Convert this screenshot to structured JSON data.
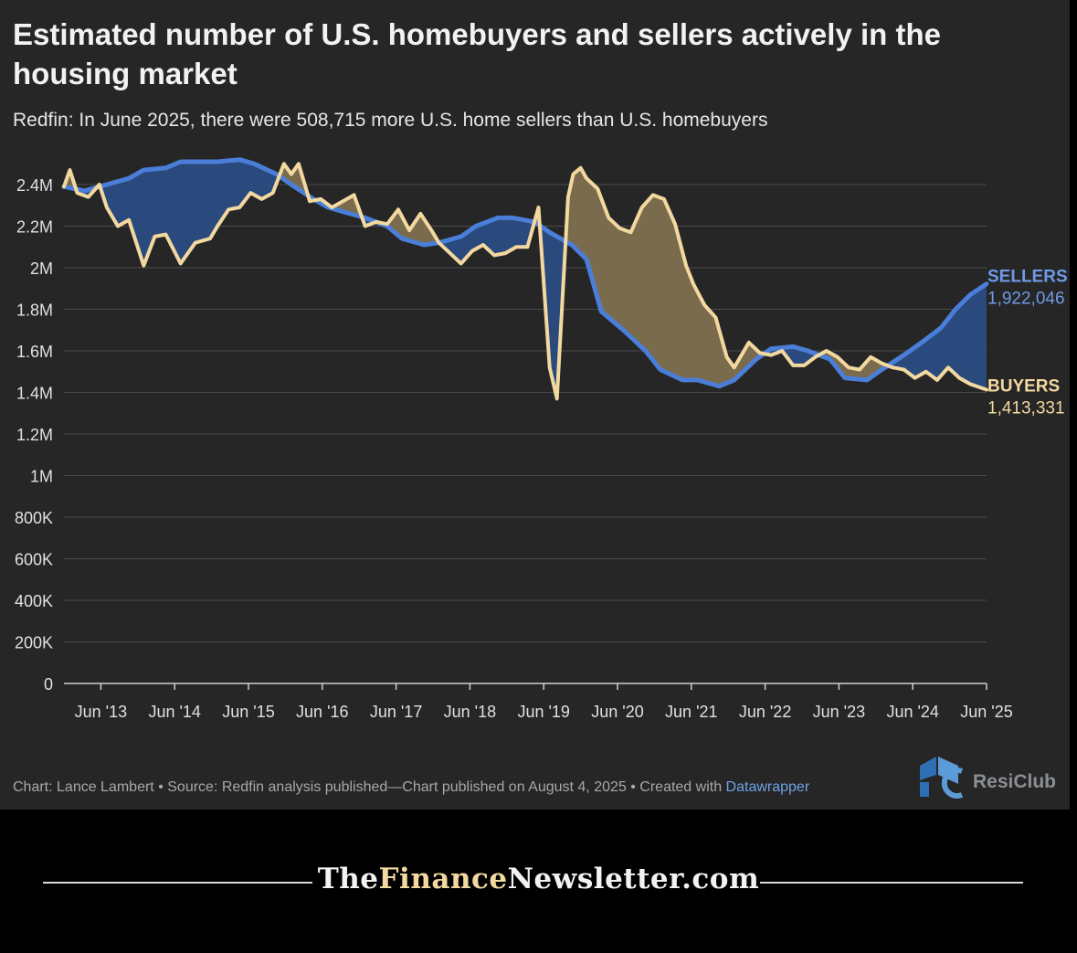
{
  "header": {
    "title": "Estimated number of U.S. homebuyers and sellers actively in the housing market",
    "subtitle": "Redfin: In June 2025, there were 508,715 more U.S. home sellers than U.S. homebuyers"
  },
  "footer": {
    "credit": "Chart: Lance Lambert • Source: Redfin analysis published—Chart published on August 4, 2025 • Created with ",
    "tool": "Datawrapper"
  },
  "logo": {
    "text": "ResiClub",
    "icon": "resiclub-logo-icon"
  },
  "brand": {
    "prefix": "The",
    "accent": "Finance",
    "suffix": "Newsletter.com"
  },
  "colors": {
    "background": "#262626",
    "sellers": "#4a7ed8",
    "sellers_fill": "#2a4b82",
    "buyers": "#f3d9a0",
    "buyers_fill": "#7f6f4f",
    "grid": "#4a4a4a",
    "text": "#e0e0e0"
  },
  "chart_data": {
    "type": "area",
    "title": "Estimated number of U.S. homebuyers and sellers actively in the housing market",
    "subtitle": "Redfin: In June 2025, there were 508,715 more U.S. home sellers than U.S. homebuyers",
    "ylim": [
      0,
      2400000
    ],
    "yticks": [
      0,
      200000,
      400000,
      600000,
      800000,
      1000000,
      1200000,
      1400000,
      1600000,
      1800000,
      2000000,
      2200000,
      2400000
    ],
    "ytick_labels": [
      "0",
      "200K",
      "400K",
      "600K",
      "800K",
      "1M",
      "1.2M",
      "1.4M",
      "1.6M",
      "1.8M",
      "2M",
      "2.2M",
      "2.4M"
    ],
    "xlim": [
      2012.92,
      2025.42
    ],
    "xticks": [
      2013.42,
      2014.42,
      2015.42,
      2016.42,
      2017.42,
      2018.42,
      2019.42,
      2020.42,
      2021.42,
      2022.42,
      2023.42,
      2024.42,
      2025.42
    ],
    "xtick_labels": [
      "Jun '13",
      "Jun '14",
      "Jun '15",
      "Jun '16",
      "Jun '17",
      "Jun '18",
      "Jun '19",
      "Jun '20",
      "Jun '21",
      "Jun '22",
      "Jun '23",
      "Jun '24",
      "Jun '25"
    ],
    "grid": true,
    "series": [
      {
        "name": "SELLERS",
        "end_label": "1,922,046",
        "x": [
          2012.92,
          2013.2,
          2013.5,
          2013.8,
          2014.0,
          2014.3,
          2014.5,
          2014.8,
          2015.0,
          2015.3,
          2015.5,
          2015.8,
          2016.0,
          2016.3,
          2016.5,
          2016.8,
          2017.0,
          2017.3,
          2017.5,
          2017.8,
          2018.0,
          2018.3,
          2018.5,
          2018.8,
          2019.0,
          2019.3,
          2019.5,
          2019.8,
          2020.0,
          2020.2,
          2020.5,
          2020.8,
          2021.0,
          2021.3,
          2021.5,
          2021.8,
          2022.0,
          2022.3,
          2022.5,
          2022.8,
          2023.0,
          2023.3,
          2023.5,
          2023.8,
          2024.0,
          2024.3,
          2024.5,
          2024.8,
          2025.0,
          2025.2,
          2025.42
        ],
        "y": [
          2390000,
          2370000,
          2400000,
          2430000,
          2470000,
          2480000,
          2510000,
          2510000,
          2510000,
          2520000,
          2500000,
          2450000,
          2400000,
          2330000,
          2290000,
          2260000,
          2240000,
          2200000,
          2140000,
          2110000,
          2120000,
          2150000,
          2200000,
          2240000,
          2240000,
          2220000,
          2170000,
          2110000,
          2040000,
          1790000,
          1700000,
          1600000,
          1510000,
          1460000,
          1460000,
          1430000,
          1460000,
          1560000,
          1610000,
          1620000,
          1600000,
          1560000,
          1470000,
          1460000,
          1510000,
          1580000,
          1630000,
          1710000,
          1800000,
          1870000,
          1922046
        ],
        "color": "#4a7ed8"
      },
      {
        "name": "BUYERS",
        "end_label": "1,413,331",
        "x": [
          2012.92,
          2013.0,
          2013.1,
          2013.25,
          2013.4,
          2013.5,
          2013.65,
          2013.8,
          2014.0,
          2014.15,
          2014.3,
          2014.5,
          2014.7,
          2014.9,
          2015.0,
          2015.15,
          2015.3,
          2015.45,
          2015.6,
          2015.75,
          2015.9,
          2016.0,
          2016.1,
          2016.25,
          2016.4,
          2016.55,
          2016.7,
          2016.85,
          2017.0,
          2017.15,
          2017.3,
          2017.45,
          2017.6,
          2017.75,
          2017.9,
          2018.0,
          2018.15,
          2018.3,
          2018.45,
          2018.6,
          2018.75,
          2018.9,
          2019.05,
          2019.2,
          2019.35,
          2019.5,
          2019.6,
          2019.75,
          2019.82,
          2019.92,
          2020.0,
          2020.15,
          2020.3,
          2020.45,
          2020.6,
          2020.75,
          2020.9,
          2021.05,
          2021.2,
          2021.35,
          2021.45,
          2021.6,
          2021.75,
          2021.9,
          2022.0,
          2022.1,
          2022.2,
          2022.35,
          2022.5,
          2022.65,
          2022.8,
          2022.95,
          2023.1,
          2023.25,
          2023.4,
          2023.55,
          2023.7,
          2023.85,
          2024.0,
          2024.15,
          2024.3,
          2024.45,
          2024.6,
          2024.75,
          2024.9,
          2025.05,
          2025.2,
          2025.42
        ],
        "y": [
          2390000,
          2470000,
          2360000,
          2340000,
          2400000,
          2290000,
          2200000,
          2230000,
          2010000,
          2150000,
          2160000,
          2020000,
          2120000,
          2140000,
          2200000,
          2280000,
          2290000,
          2360000,
          2330000,
          2360000,
          2500000,
          2450000,
          2500000,
          2320000,
          2330000,
          2290000,
          2320000,
          2350000,
          2200000,
          2220000,
          2210000,
          2280000,
          2180000,
          2260000,
          2180000,
          2120000,
          2070000,
          2020000,
          2080000,
          2110000,
          2060000,
          2070000,
          2100000,
          2100000,
          2290000,
          1520000,
          1370000,
          2340000,
          2450000,
          2480000,
          2430000,
          2380000,
          2240000,
          2190000,
          2170000,
          2290000,
          2350000,
          2330000,
          2210000,
          2010000,
          1920000,
          1820000,
          1760000,
          1570000,
          1520000,
          1580000,
          1640000,
          1590000,
          1580000,
          1600000,
          1530000,
          1530000,
          1570000,
          1600000,
          1570000,
          1520000,
          1510000,
          1570000,
          1540000,
          1520000,
          1510000,
          1470000,
          1500000,
          1460000,
          1520000,
          1470000,
          1440000,
          1413331
        ],
        "color": "#f3d9a0"
      }
    ]
  }
}
